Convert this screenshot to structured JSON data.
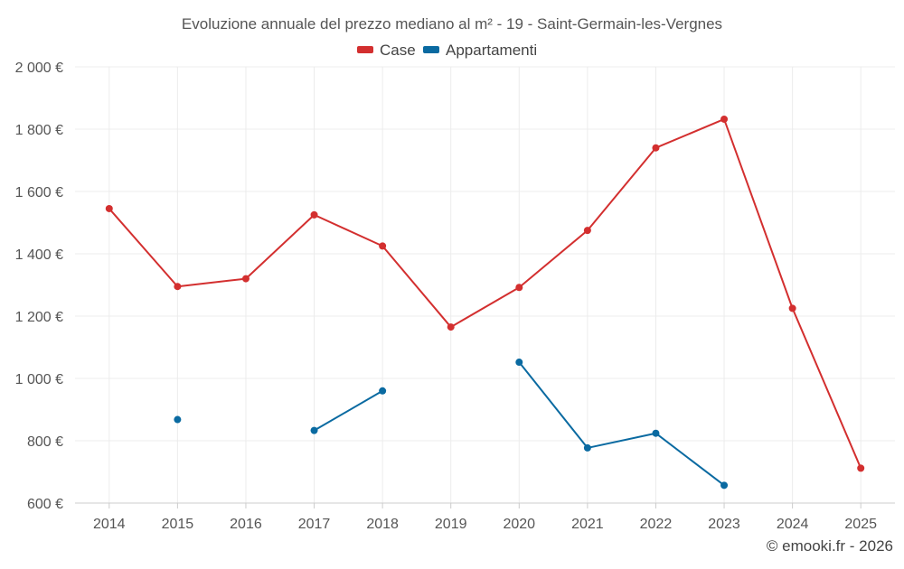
{
  "chart_data": {
    "type": "line",
    "title": "Evoluzione annuale del prezzo mediano al m² - 19 - Saint-Germain-les-Vergnes",
    "xlabel": "",
    "ylabel": "",
    "categories": [
      "2014",
      "2015",
      "2016",
      "2017",
      "2018",
      "2019",
      "2020",
      "2021",
      "2022",
      "2023",
      "2024",
      "2025"
    ],
    "ylim": [
      600,
      2000
    ],
    "yticks": [
      600,
      800,
      1000,
      1200,
      1400,
      1600,
      1800,
      2000
    ],
    "ytick_labels": [
      "600 €",
      "800 €",
      "1 000 €",
      "1 200 €",
      "1 400 €",
      "1 600 €",
      "1 800 €",
      "2 000 €"
    ],
    "grid": true,
    "legend_position": "top-center",
    "series": [
      {
        "name": "Case",
        "color": "#d32f2f",
        "values": [
          1545,
          1295,
          1320,
          1525,
          1425,
          1165,
          1292,
          1475,
          1740,
          1832,
          1225,
          712
        ]
      },
      {
        "name": "Appartamenti",
        "color": "#0a6aa1",
        "values": [
          null,
          868,
          null,
          833,
          960,
          null,
          1052,
          777,
          824,
          657,
          null,
          null
        ]
      }
    ],
    "credit": "© emooki.fr - 2026"
  }
}
